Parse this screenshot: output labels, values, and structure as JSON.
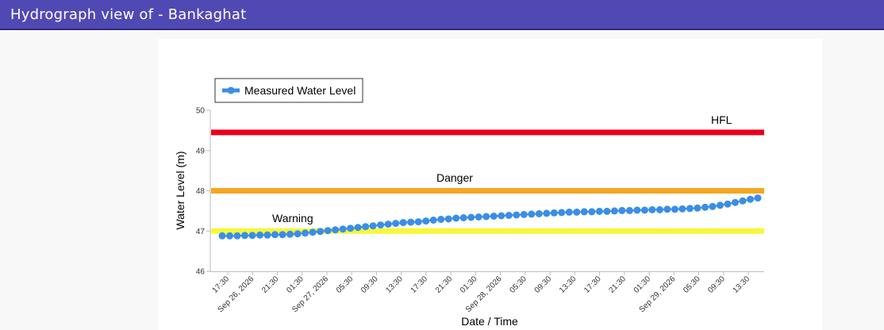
{
  "header": {
    "title": "Hydrograph view of - Bankaghat"
  },
  "colors": {
    "header_bg": "#5149b3",
    "series": "#3a8ee6",
    "hfl": "#e8001c",
    "danger": "#f5a623",
    "warning": "#f7f73a"
  },
  "chart_data": {
    "type": "line",
    "xlabel": "Date / Time",
    "ylabel": "Water Level (m)",
    "ylim": [
      46,
      50
    ],
    "yticks": [
      "46",
      "47",
      "48",
      "49",
      "50"
    ],
    "grid": false,
    "legend_position": "top-left",
    "x_ticks": [
      "17:30",
      "Sep 26, 2026",
      "21:30",
      "01:30",
      "Sep 27, 2026",
      "05:30",
      "09:30",
      "13:30",
      "17:30",
      "21:30",
      "01:30",
      "Sep 28, 2026",
      "05:30",
      "09:30",
      "13:30",
      "17:30",
      "21:30",
      "01:30",
      "Sep 29, 2026",
      "05:30",
      "09:30",
      "13:30"
    ],
    "reference_lines": [
      {
        "name": "HFL",
        "value": 49.45
      },
      {
        "name": "Danger",
        "value": 48.0
      },
      {
        "name": "Warning",
        "value": 47.0
      }
    ],
    "series": [
      {
        "name": "Measured Water Level",
        "values": [
          46.88,
          46.88,
          46.88,
          46.89,
          46.89,
          46.9,
          46.9,
          46.91,
          46.91,
          46.92,
          46.93,
          46.95,
          46.97,
          46.99,
          47.01,
          47.03,
          47.05,
          47.07,
          47.09,
          47.11,
          47.13,
          47.15,
          47.17,
          47.19,
          47.21,
          47.22,
          47.23,
          47.25,
          47.27,
          47.29,
          47.3,
          47.32,
          47.33,
          47.34,
          47.35,
          47.36,
          47.37,
          47.38,
          47.39,
          47.4,
          47.41,
          47.42,
          47.43,
          47.44,
          47.45,
          47.46,
          47.47,
          47.47,
          47.48,
          47.48,
          47.49,
          47.49,
          47.5,
          47.51,
          47.51,
          47.52,
          47.52,
          47.53,
          47.53,
          47.54,
          47.54,
          47.55,
          47.56,
          47.57,
          47.59,
          47.61,
          47.64,
          47.67,
          47.71,
          47.75,
          47.79,
          47.82
        ]
      }
    ]
  }
}
